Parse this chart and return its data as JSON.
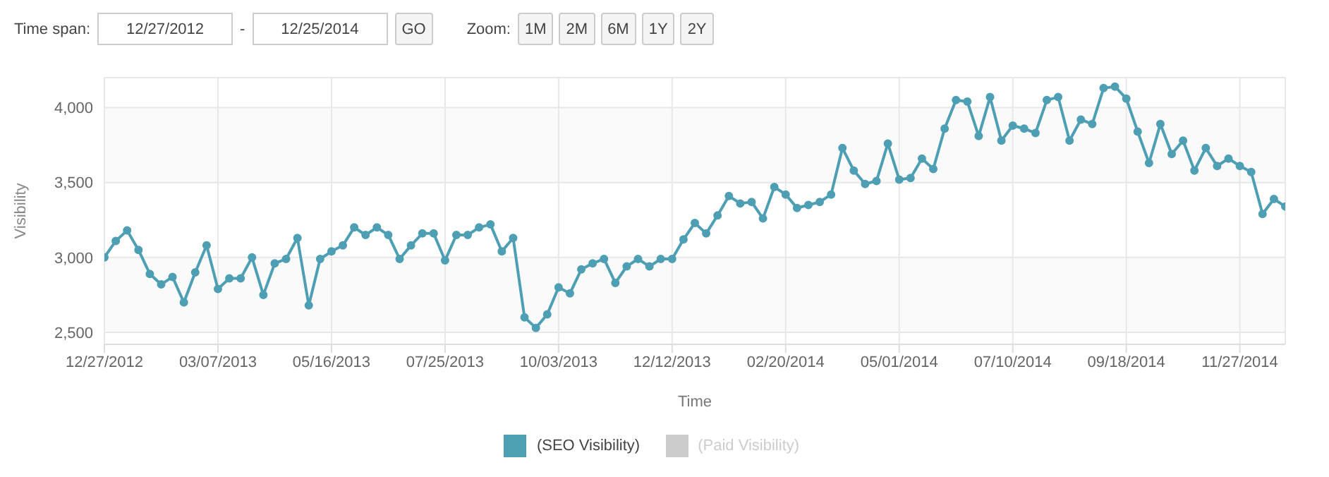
{
  "chart_data": {
    "type": "line",
    "xlabel": "Time",
    "ylabel": "Visibility",
    "annotations": [
      "Time span:",
      "12/27/2012",
      "-",
      "12/25/2014",
      "GO",
      "Zoom:",
      "1M",
      "2M",
      "6M",
      "1Y",
      "2Y"
    ],
    "x": [
      "2012-12-27",
      "2013-01-03",
      "2013-01-10",
      "2013-01-17",
      "2013-01-24",
      "2013-01-31",
      "2013-02-07",
      "2013-02-14",
      "2013-02-21",
      "2013-02-28",
      "2013-03-07",
      "2013-03-14",
      "2013-03-21",
      "2013-03-28",
      "2013-04-04",
      "2013-04-11",
      "2013-04-18",
      "2013-04-25",
      "2013-05-02",
      "2013-05-09",
      "2013-05-16",
      "2013-05-23",
      "2013-05-30",
      "2013-06-06",
      "2013-06-13",
      "2013-06-20",
      "2013-06-27",
      "2013-07-04",
      "2013-07-11",
      "2013-07-18",
      "2013-07-25",
      "2013-08-01",
      "2013-08-08",
      "2013-08-15",
      "2013-08-22",
      "2013-08-29",
      "2013-09-05",
      "2013-09-12",
      "2013-09-19",
      "2013-09-26",
      "2013-10-03",
      "2013-10-10",
      "2013-10-17",
      "2013-10-24",
      "2013-10-31",
      "2013-11-07",
      "2013-11-14",
      "2013-11-21",
      "2013-11-28",
      "2013-12-05",
      "2013-12-12",
      "2013-12-19",
      "2013-12-26",
      "2014-01-02",
      "2014-01-09",
      "2014-01-16",
      "2014-01-23",
      "2014-01-30",
      "2014-02-06",
      "2014-02-13",
      "2014-02-20",
      "2014-02-27",
      "2014-03-06",
      "2014-03-13",
      "2014-03-20",
      "2014-03-27",
      "2014-04-03",
      "2014-04-10",
      "2014-04-17",
      "2014-04-24",
      "2014-05-01",
      "2014-05-08",
      "2014-05-15",
      "2014-05-22",
      "2014-05-29",
      "2014-06-05",
      "2014-06-12",
      "2014-06-19",
      "2014-06-26",
      "2014-07-03",
      "2014-07-10",
      "2014-07-17",
      "2014-07-24",
      "2014-07-31",
      "2014-08-07",
      "2014-08-14",
      "2014-08-21",
      "2014-08-28",
      "2014-09-04",
      "2014-09-11",
      "2014-09-18",
      "2014-09-25",
      "2014-10-02",
      "2014-10-09",
      "2014-10-16",
      "2014-10-23",
      "2014-10-30",
      "2014-11-06",
      "2014-11-13",
      "2014-11-20",
      "2014-11-27",
      "2014-12-04",
      "2014-12-11",
      "2014-12-18",
      "2014-12-25"
    ],
    "series": [
      {
        "name": "(SEO Visibility)",
        "color": "#4e9fb4",
        "values": [
          3000,
          3110,
          3180,
          3050,
          2890,
          2820,
          2870,
          2700,
          2900,
          3080,
          2790,
          2860,
          2860,
          3000,
          2750,
          2960,
          2990,
          3130,
          2680,
          2990,
          3040,
          3080,
          3200,
          3150,
          3200,
          3150,
          2990,
          3080,
          3160,
          3160,
          2980,
          3150,
          3150,
          3200,
          3220,
          3040,
          3130,
          2600,
          2530,
          2620,
          2800,
          2760,
          2920,
          2960,
          2990,
          2830,
          2940,
          2990,
          2940,
          2990,
          2990,
          3120,
          3230,
          3160,
          3280,
          3410,
          3360,
          3370,
          3260,
          3470,
          3420,
          3330,
          3350,
          3370,
          3420,
          3730,
          3580,
          3490,
          3510,
          3760,
          3520,
          3530,
          3660,
          3590,
          3860,
          4050,
          4040,
          3810,
          4070,
          3780,
          3880,
          3860,
          3830,
          4050,
          4070,
          3780,
          3920,
          3890,
          4130,
          4140,
          4060,
          3840,
          3630,
          3890,
          3690,
          3780,
          3580,
          3730,
          3610,
          3660,
          3610,
          3570,
          3290,
          3390,
          3340
        ]
      },
      {
        "name": "(Paid Visibility)",
        "color": "#cccccc",
        "values": [
          null,
          null,
          null,
          null,
          null,
          null,
          null,
          null,
          null,
          null,
          null,
          null,
          null,
          null,
          null,
          null,
          null,
          null,
          null,
          null,
          null,
          null,
          null,
          null,
          null,
          null,
          null,
          null,
          null,
          null,
          null,
          null,
          null,
          null,
          null,
          null,
          null,
          null,
          null,
          null,
          null,
          null,
          null,
          null,
          null,
          null,
          null,
          null,
          null,
          null,
          null,
          null,
          null,
          null,
          null,
          null,
          null,
          null,
          null,
          null,
          null,
          null,
          null,
          null,
          null,
          null,
          null,
          null,
          null,
          null,
          null,
          null,
          null,
          null,
          null,
          null,
          null,
          null,
          null,
          null,
          null,
          null,
          null,
          null,
          null,
          null,
          null,
          null,
          null,
          null,
          null,
          null,
          null,
          null,
          null,
          null,
          null,
          null,
          null,
          null,
          null,
          null,
          null,
          null,
          null
        ]
      }
    ],
    "xlim": [
      "2012-12-27",
      "2014-12-25"
    ],
    "xticks": [
      {
        "value": "2012-12-27",
        "label": "12/27/2012"
      },
      {
        "value": "2013-03-07",
        "label": "03/07/2013"
      },
      {
        "value": "2013-05-16",
        "label": "05/16/2013"
      },
      {
        "value": "2013-07-25",
        "label": "07/25/2013"
      },
      {
        "value": "2013-10-03",
        "label": "10/03/2013"
      },
      {
        "value": "2013-12-12",
        "label": "12/12/2013"
      },
      {
        "value": "2014-02-20",
        "label": "02/20/2014"
      },
      {
        "value": "2014-05-01",
        "label": "05/01/2014"
      },
      {
        "value": "2014-07-10",
        "label": "07/10/2014"
      },
      {
        "value": "2014-09-18",
        "label": "09/18/2014"
      },
      {
        "value": "2014-11-27",
        "label": "11/27/2014"
      }
    ],
    "ylim": [
      2420,
      4200
    ],
    "yticks": [
      {
        "value": 2500,
        "label": "2,500"
      },
      {
        "value": 3000,
        "label": "3,000"
      },
      {
        "value": 3500,
        "label": "3,500"
      },
      {
        "value": 4000,
        "label": "4,000"
      }
    ],
    "grid": true,
    "legend": "bottom",
    "marker": "circle",
    "line_style": "solid"
  }
}
